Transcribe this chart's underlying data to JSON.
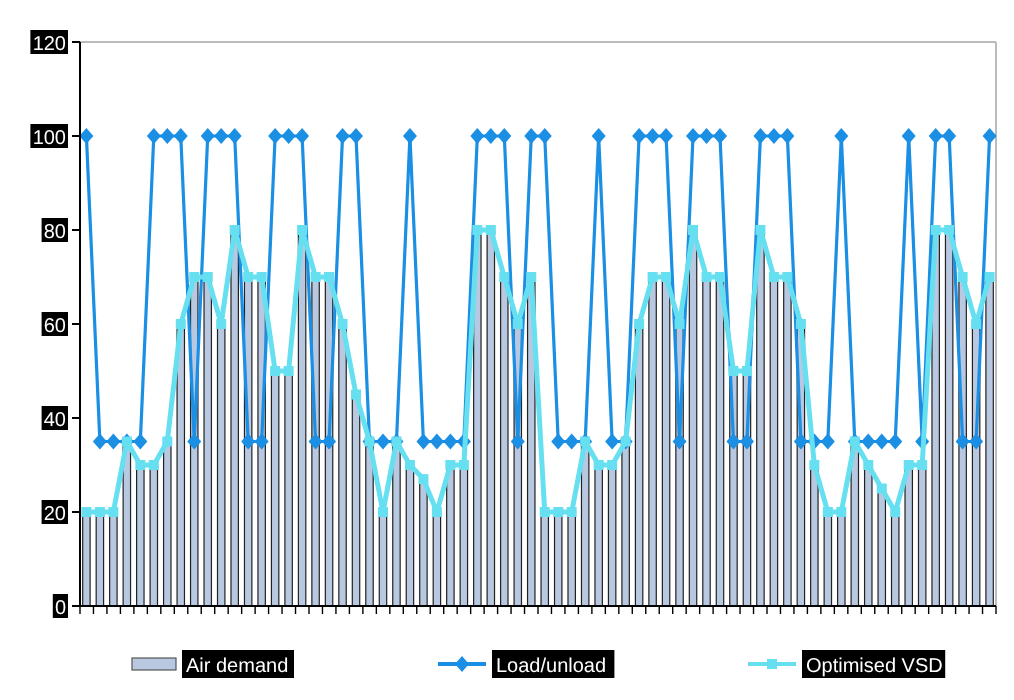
{
  "chart_data": {
    "type": "bar",
    "categories": [
      null,
      null,
      null,
      null,
      null,
      null,
      null,
      null,
      null,
      null,
      null,
      null,
      null,
      null,
      null,
      null,
      null,
      null,
      null,
      null,
      null,
      null,
      null,
      null,
      null,
      null,
      null,
      null,
      null,
      null,
      null,
      null,
      null,
      null,
      null,
      null,
      null,
      null,
      null,
      null,
      null,
      null,
      null,
      null,
      null,
      null,
      null,
      null,
      null,
      null,
      null,
      null,
      null,
      null,
      null,
      null,
      null,
      null,
      null,
      null,
      null,
      null,
      null,
      null,
      null,
      null,
      null,
      null
    ],
    "series": [
      {
        "name": "Air demand",
        "color": "#b8c8e0",
        "values": [
          20,
          20,
          20,
          35,
          30,
          30,
          35,
          60,
          70,
          70,
          60,
          80,
          70,
          70,
          50,
          50,
          80,
          70,
          70,
          60,
          45,
          35,
          20,
          35,
          30,
          27,
          20,
          30,
          30,
          80,
          80,
          70,
          60,
          70,
          20,
          20,
          20,
          35,
          30,
          30,
          35,
          60,
          70,
          70,
          60,
          80,
          70,
          70,
          50,
          50,
          80,
          70,
          70,
          60,
          30,
          20,
          20,
          35,
          30,
          25,
          20,
          30,
          30,
          80,
          80,
          70,
          60,
          70
        ]
      },
      {
        "name": "Load/unload",
        "type": "line",
        "color": "#1a8fe3",
        "marker": "diamond",
        "values": [
          100,
          35,
          35,
          35,
          35,
          100,
          100,
          100,
          35,
          100,
          100,
          100,
          35,
          35,
          100,
          100,
          100,
          35,
          35,
          100,
          100,
          35,
          35,
          35,
          100,
          35,
          35,
          35,
          35,
          100,
          100,
          100,
          35,
          100,
          100,
          35,
          35,
          35,
          100,
          35,
          35,
          100,
          100,
          100,
          35,
          100,
          100,
          100,
          35,
          35,
          100,
          100,
          100,
          35,
          35,
          35,
          100,
          35,
          35,
          35,
          35,
          100,
          35,
          100,
          100,
          35,
          35,
          100
        ]
      },
      {
        "name": "Optimised VSD",
        "type": "line",
        "color": "#66e0f0",
        "marker": "square",
        "values": [
          20,
          20,
          20,
          35,
          30,
          30,
          35,
          60,
          70,
          70,
          60,
          80,
          70,
          70,
          50,
          50,
          80,
          70,
          70,
          60,
          45,
          35,
          20,
          35,
          30,
          27,
          20,
          30,
          30,
          80,
          80,
          70,
          60,
          70,
          20,
          20,
          20,
          35,
          30,
          30,
          35,
          60,
          70,
          70,
          60,
          80,
          70,
          70,
          50,
          50,
          80,
          70,
          70,
          60,
          30,
          20,
          20,
          35,
          30,
          25,
          20,
          30,
          30,
          80,
          80,
          70,
          60,
          70
        ]
      }
    ],
    "ylim": [
      0,
      120
    ],
    "yticks": [
      0,
      20,
      40,
      60,
      80,
      100,
      120
    ],
    "legend": "bottom"
  }
}
